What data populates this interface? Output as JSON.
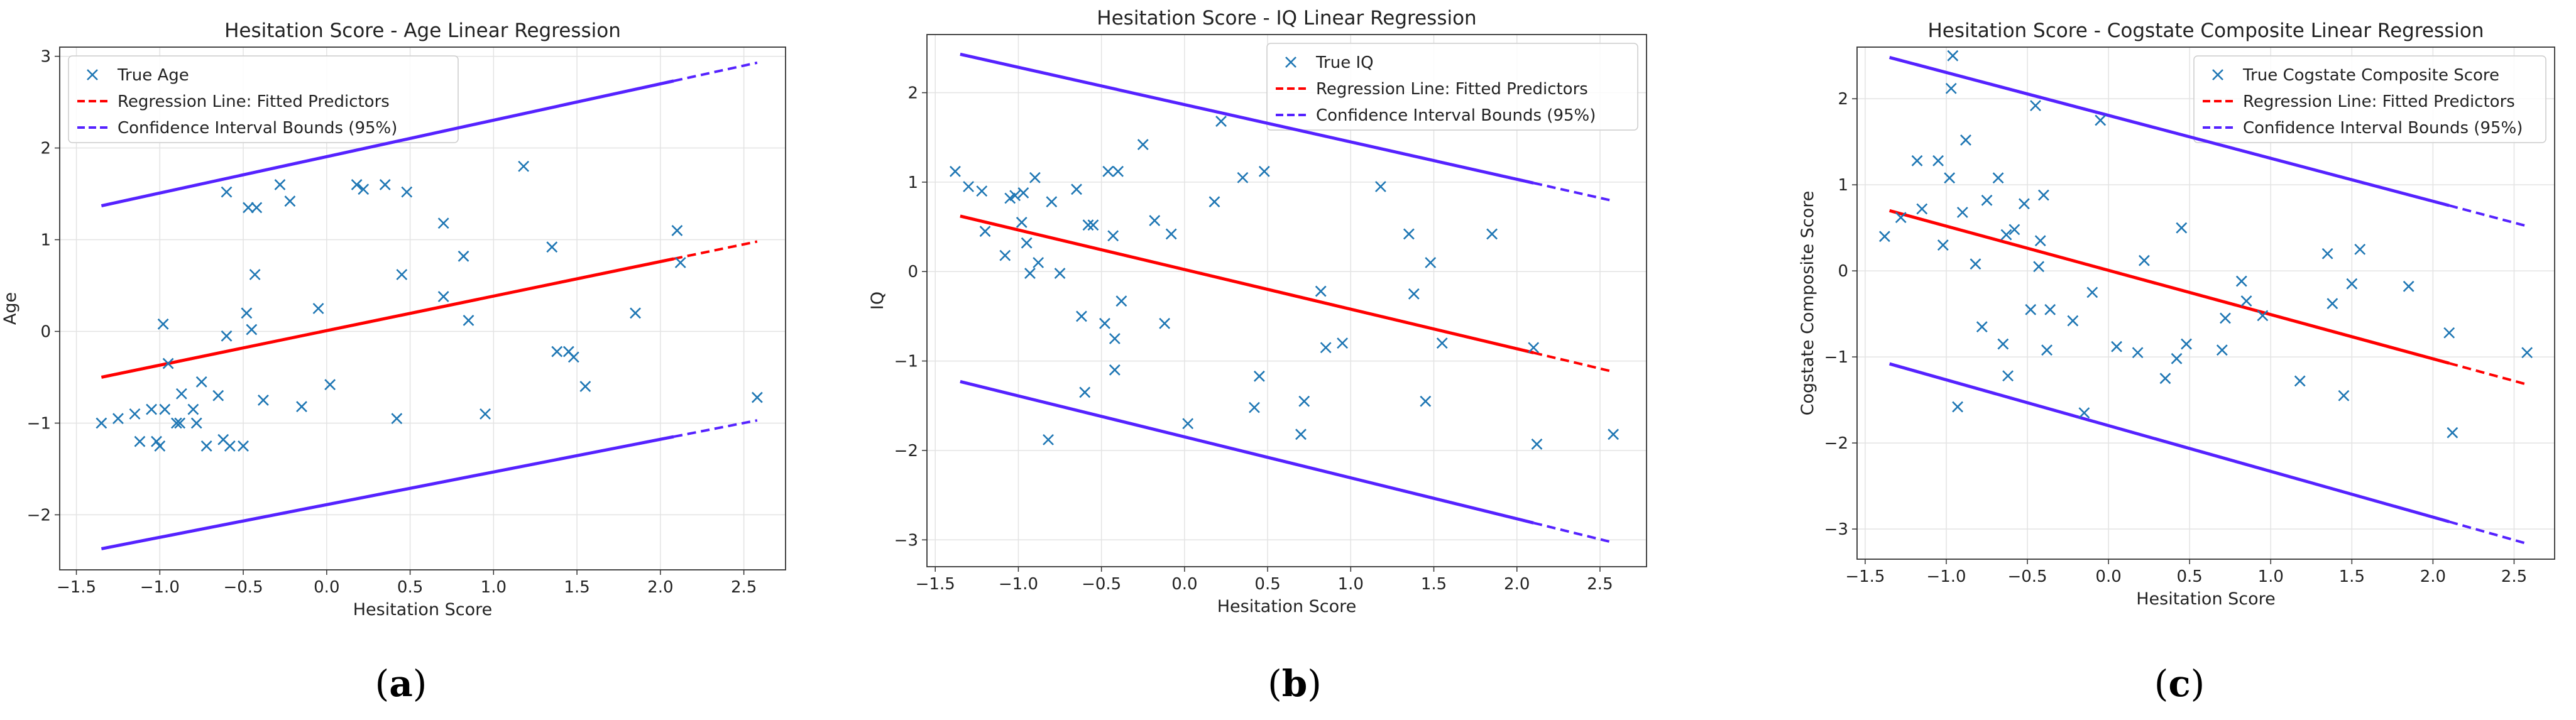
{
  "chart_data": [
    {
      "type": "scatter",
      "panel_label": "(a)",
      "panel_letter": "a",
      "title": "Hesitation Score - Age Linear Regression",
      "xlabel": "Hesitation Score",
      "ylabel": "Age",
      "xlim": [
        -1.6,
        2.75
      ],
      "ylim": [
        -2.6,
        3.1
      ],
      "xticks": [
        -1.5,
        -1.0,
        -0.5,
        0.0,
        0.5,
        1.0,
        1.5,
        2.0,
        2.5
      ],
      "yticks": [
        -2,
        -1,
        0,
        1,
        2,
        3
      ],
      "legend": [
        "True Age",
        "Regression Line: Fitted Predictors",
        "Confidence Interval Bounds (95%)"
      ],
      "legend_position": "top-left",
      "regression": {
        "x": [
          -1.35,
          2.58
        ],
        "y": [
          -0.5,
          0.98
        ],
        "solid_until": 2.08
      },
      "ci_upper": {
        "x": [
          -1.35,
          2.58
        ],
        "y": [
          1.37,
          2.93
        ]
      },
      "ci_lower": {
        "x": [
          -1.35,
          2.58
        ],
        "y": [
          -2.37,
          -0.97
        ]
      },
      "colors": {
        "points": "#1f77b4",
        "regression": "#ff0000",
        "ci": "#5522ff"
      },
      "points": [
        [
          -1.35,
          -1.0
        ],
        [
          -1.25,
          -0.95
        ],
        [
          -1.15,
          -0.9
        ],
        [
          -1.12,
          -1.2
        ],
        [
          -1.05,
          -0.85
        ],
        [
          -1.02,
          -1.2
        ],
        [
          -1.0,
          -1.25
        ],
        [
          -0.98,
          0.08
        ],
        [
          -0.97,
          -0.85
        ],
        [
          -0.95,
          -0.35
        ],
        [
          -0.9,
          -1.0
        ],
        [
          -0.88,
          -1.0
        ],
        [
          -0.87,
          -0.68
        ],
        [
          -0.8,
          -0.85
        ],
        [
          -0.78,
          -1.0
        ],
        [
          -0.75,
          -0.55
        ],
        [
          -0.72,
          -1.25
        ],
        [
          -0.65,
          -0.7
        ],
        [
          -0.62,
          -1.18
        ],
        [
          -0.6,
          -0.05
        ],
        [
          -0.58,
          -1.25
        ],
        [
          -0.6,
          1.52
        ],
        [
          -0.5,
          -1.25
        ],
        [
          -0.48,
          0.2
        ],
        [
          -0.47,
          1.35
        ],
        [
          -0.45,
          0.02
        ],
        [
          -0.43,
          0.62
        ],
        [
          -0.42,
          1.35
        ],
        [
          -0.38,
          -0.75
        ],
        [
          -0.28,
          1.6
        ],
        [
          -0.22,
          1.42
        ],
        [
          -0.15,
          -0.82
        ],
        [
          -0.05,
          0.25
        ],
        [
          0.02,
          -0.58
        ],
        [
          0.18,
          1.6
        ],
        [
          0.22,
          1.55
        ],
        [
          0.35,
          1.6
        ],
        [
          0.42,
          -0.95
        ],
        [
          0.45,
          0.62
        ],
        [
          0.48,
          1.52
        ],
        [
          0.7,
          1.18
        ],
        [
          0.7,
          0.38
        ],
        [
          0.82,
          0.82
        ],
        [
          0.85,
          0.12
        ],
        [
          0.95,
          -0.9
        ],
        [
          1.18,
          1.8
        ],
        [
          1.35,
          0.92
        ],
        [
          1.38,
          -0.22
        ],
        [
          1.45,
          -0.22
        ],
        [
          1.48,
          -0.28
        ],
        [
          1.55,
          -0.6
        ],
        [
          1.85,
          0.2
        ],
        [
          2.1,
          1.1
        ],
        [
          2.12,
          0.75
        ],
        [
          2.58,
          -0.72
        ]
      ]
    },
    {
      "type": "scatter",
      "panel_label": "(b)",
      "panel_letter": "b",
      "title": "Hesitation Score - IQ Linear Regression",
      "xlabel": "Hesitation Score",
      "ylabel": "IQ",
      "xlim": [
        -1.55,
        2.78
      ],
      "ylim": [
        -3.3,
        2.65
      ],
      "xticks": [
        -1.5,
        -1.0,
        -0.5,
        0.0,
        0.5,
        1.0,
        1.5,
        2.0,
        2.5
      ],
      "yticks": [
        -3,
        -2,
        -1,
        0,
        1,
        2
      ],
      "legend": [
        "True IQ",
        "Regression Line: Fitted Predictors",
        "Confidence Interval Bounds (95%)"
      ],
      "legend_position": "top-right",
      "regression": {
        "x": [
          -1.35,
          2.58
        ],
        "y": [
          0.62,
          -1.12
        ],
        "solid_until": 2.1
      },
      "ci_upper": {
        "x": [
          -1.35,
          2.58
        ],
        "y": [
          2.43,
          0.79
        ]
      },
      "ci_lower": {
        "x": [
          -1.35,
          2.58
        ],
        "y": [
          -1.23,
          -3.03
        ]
      },
      "colors": {
        "points": "#1f77b4",
        "regression": "#ff0000",
        "ci": "#5522ff"
      },
      "points": [
        [
          -1.38,
          1.12
        ],
        [
          -1.3,
          0.95
        ],
        [
          -1.22,
          0.9
        ],
        [
          -1.2,
          0.45
        ],
        [
          -1.08,
          0.18
        ],
        [
          -1.05,
          0.82
        ],
        [
          -1.02,
          0.85
        ],
        [
          -0.98,
          0.55
        ],
        [
          -0.97,
          0.88
        ],
        [
          -0.95,
          0.32
        ],
        [
          -0.93,
          -0.02
        ],
        [
          -0.9,
          1.05
        ],
        [
          -0.88,
          0.1
        ],
        [
          -0.82,
          -1.88
        ],
        [
          -0.8,
          0.78
        ],
        [
          -0.75,
          -0.02
        ],
        [
          -0.65,
          0.92
        ],
        [
          -0.62,
          -0.5
        ],
        [
          -0.6,
          -1.35
        ],
        [
          -0.58,
          0.52
        ],
        [
          -0.55,
          0.52
        ],
        [
          -0.48,
          -0.58
        ],
        [
          -0.46,
          1.12
        ],
        [
          -0.43,
          0.4
        ],
        [
          -0.42,
          -0.75
        ],
        [
          -0.4,
          1.12
        ],
        [
          -0.42,
          -1.1
        ],
        [
          -0.38,
          -0.33
        ],
        [
          -0.25,
          1.42
        ],
        [
          -0.18,
          0.57
        ],
        [
          -0.12,
          -0.58
        ],
        [
          -0.08,
          0.42
        ],
        [
          0.02,
          -1.7
        ],
        [
          0.18,
          0.78
        ],
        [
          0.22,
          1.68
        ],
        [
          0.35,
          1.05
        ],
        [
          0.42,
          -1.52
        ],
        [
          0.45,
          -1.17
        ],
        [
          0.48,
          1.12
        ],
        [
          0.7,
          -1.82
        ],
        [
          0.72,
          -1.45
        ],
        [
          0.82,
          -0.22
        ],
        [
          0.85,
          -0.85
        ],
        [
          0.95,
          -0.8
        ],
        [
          1.18,
          0.95
        ],
        [
          1.35,
          0.42
        ],
        [
          1.38,
          -0.25
        ],
        [
          1.45,
          -1.45
        ],
        [
          1.48,
          0.1
        ],
        [
          1.55,
          -0.8
        ],
        [
          1.85,
          0.42
        ],
        [
          2.1,
          -0.85
        ],
        [
          2.12,
          -1.93
        ],
        [
          2.58,
          -1.82
        ]
      ]
    },
    {
      "type": "scatter",
      "panel_label": "(c)",
      "panel_letter": "c",
      "title": "Hesitation Score - Cogstate Composite Linear Regression",
      "xlabel": "Hesitation Score",
      "ylabel": "Cogstate Composite Score",
      "xlim": [
        -1.55,
        2.75
      ],
      "ylim": [
        -3.35,
        2.6
      ],
      "xticks": [
        -1.5,
        -1.0,
        -0.5,
        0.0,
        0.5,
        1.0,
        1.5,
        2.0,
        2.5
      ],
      "yticks": [
        -3,
        -2,
        -1,
        0,
        1,
        2
      ],
      "legend": [
        "True Cogstate Composite Score",
        "Regression Line: Fitted Predictors",
        "Confidence Interval Bounds (95%)"
      ],
      "legend_position": "top-right",
      "regression": {
        "x": [
          -1.35,
          2.58
        ],
        "y": [
          0.7,
          -1.32
        ],
        "solid_until": 2.1
      },
      "ci_upper": {
        "x": [
          -1.35,
          2.58
        ],
        "y": [
          2.48,
          0.52
        ]
      },
      "ci_lower": {
        "x": [
          -1.35,
          2.58
        ],
        "y": [
          -1.08,
          -3.17
        ]
      },
      "colors": {
        "points": "#1f77b4",
        "regression": "#ff0000",
        "ci": "#5522ff"
      },
      "points": [
        [
          -1.38,
          0.4
        ],
        [
          -1.28,
          0.62
        ],
        [
          -1.18,
          1.28
        ],
        [
          -1.15,
          0.72
        ],
        [
          -1.05,
          1.28
        ],
        [
          -1.02,
          0.3
        ],
        [
          -0.98,
          1.08
        ],
        [
          -0.97,
          2.12
        ],
        [
          -0.96,
          2.5
        ],
        [
          -0.93,
          -1.58
        ],
        [
          -0.9,
          0.68
        ],
        [
          -0.88,
          1.52
        ],
        [
          -0.82,
          0.08
        ],
        [
          -0.78,
          -0.65
        ],
        [
          -0.75,
          0.82
        ],
        [
          -0.68,
          1.08
        ],
        [
          -0.65,
          -0.85
        ],
        [
          -0.63,
          0.42
        ],
        [
          -0.62,
          -1.22
        ],
        [
          -0.58,
          0.48
        ],
        [
          -0.52,
          0.78
        ],
        [
          -0.48,
          -0.45
        ],
        [
          -0.45,
          1.92
        ],
        [
          -0.43,
          0.05
        ],
        [
          -0.42,
          0.35
        ],
        [
          -0.4,
          0.88
        ],
        [
          -0.38,
          -0.92
        ],
        [
          -0.36,
          -0.45
        ],
        [
          -0.22,
          -0.58
        ],
        [
          -0.15,
          -1.65
        ],
        [
          -0.1,
          -0.25
        ],
        [
          -0.05,
          1.75
        ],
        [
          0.05,
          -0.88
        ],
        [
          0.18,
          -0.95
        ],
        [
          0.22,
          0.12
        ],
        [
          0.35,
          -1.25
        ],
        [
          0.42,
          -1.02
        ],
        [
          0.45,
          0.5
        ],
        [
          0.48,
          -0.85
        ],
        [
          0.7,
          -0.92
        ],
        [
          0.72,
          -0.55
        ],
        [
          0.82,
          -0.12
        ],
        [
          0.85,
          -0.35
        ],
        [
          0.95,
          -0.52
        ],
        [
          1.18,
          -1.28
        ],
        [
          1.35,
          0.2
        ],
        [
          1.38,
          -0.38
        ],
        [
          1.45,
          -1.45
        ],
        [
          1.5,
          -0.15
        ],
        [
          1.55,
          0.25
        ],
        [
          1.85,
          -0.18
        ],
        [
          2.1,
          -0.72
        ],
        [
          2.12,
          -1.88
        ],
        [
          2.58,
          -0.95
        ]
      ]
    }
  ]
}
